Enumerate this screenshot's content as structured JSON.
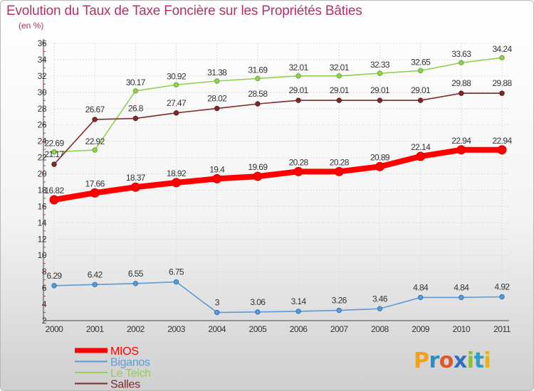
{
  "title": "Evolution du Taux de Taxe Foncière sur les Propriétés Bâties",
  "unit_label": "(en %)",
  "logo_text": "Proxiti",
  "chart_data": {
    "type": "line",
    "title": "Evolution du Taux de Taxe Foncière sur les Propriétés Bâties",
    "ylabel": "(en %)",
    "xlabel": "",
    "ylim": [
      2,
      36
    ],
    "yticks": [
      "2",
      "4",
      "6",
      "8",
      "10",
      "12",
      "14",
      "16",
      "18",
      "20",
      "22",
      "24",
      "26",
      "28",
      "30",
      "32",
      "34",
      "36"
    ],
    "categories": [
      "2000",
      "2001",
      "2002",
      "2003",
      "2004",
      "2005",
      "2006",
      "2007",
      "2008",
      "2009",
      "2010",
      "2011"
    ],
    "grid": true,
    "legend_position": "bottom-left",
    "series": [
      {
        "name": "MIOS",
        "color": "#ff0000",
        "values": [
          16.82,
          17.66,
          18.37,
          18.92,
          19.4,
          19.69,
          20.28,
          20.28,
          20.89,
          22.14,
          22.94,
          22.94
        ],
        "labels": [
          "16.82",
          "17.66",
          "18.37",
          "18.92",
          "19.4",
          "19.69",
          "20.28",
          "20.28",
          "20.89",
          "22.14",
          "22.94",
          "22.94"
        ]
      },
      {
        "name": "Biganos",
        "color": "#5b9bd5",
        "values": [
          6.29,
          6.42,
          6.55,
          6.75,
          3,
          3.06,
          3.14,
          3.26,
          3.46,
          4.84,
          4.84,
          4.92
        ],
        "labels": [
          "6.29",
          "6.42",
          "6.55",
          "6.75",
          "3",
          "3.06",
          "3.14",
          "3.26",
          "3.46",
          "4.84",
          "4.84",
          "4.92"
        ]
      },
      {
        "name": "Le Teich",
        "color": "#92d050",
        "values": [
          22.69,
          22.92,
          30.17,
          30.92,
          31.38,
          31.69,
          32.01,
          32.01,
          32.33,
          32.65,
          33.63,
          34.24
        ],
        "labels": [
          "22.69",
          "22.92",
          "30.17",
          "30.92",
          "31.38",
          "31.69",
          "32.01",
          "32.01",
          "32.33",
          "32.65",
          "33.63",
          "34.24"
        ]
      },
      {
        "name": "Salles",
        "color": "#7f2a2a",
        "values": [
          21.17,
          26.67,
          26.8,
          27.47,
          28.02,
          28.58,
          29.01,
          29.01,
          29.01,
          29.01,
          29.88,
          29.88
        ],
        "labels": [
          "21.17",
          "26.67",
          "26.8",
          "27.47",
          "28.02",
          "28.58",
          "29.01",
          "29.01",
          "29.01",
          "29.01",
          "29.88",
          "29.88"
        ]
      }
    ]
  }
}
